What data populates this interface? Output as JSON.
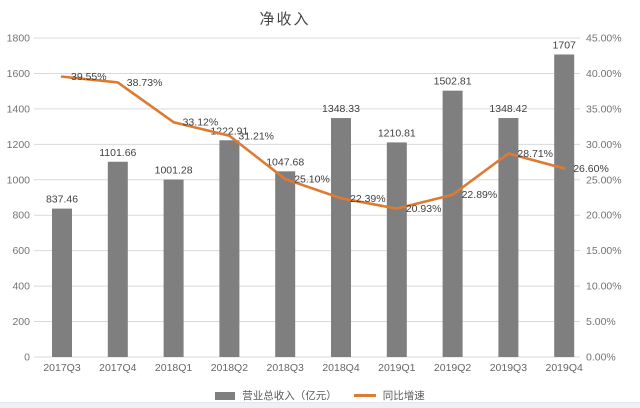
{
  "chart_data": {
    "type": "combo-bar-line",
    "title": "净收入",
    "categories": [
      "2017Q3",
      "2017Q4",
      "2018Q1",
      "2018Q2",
      "2018Q3",
      "2018Q4",
      "2019Q1",
      "2019Q2",
      "2019Q3",
      "2019Q4"
    ],
    "series": [
      {
        "name": "营业总收入（亿元）",
        "type": "bar",
        "axis": "left",
        "color": "#7f7f7f",
        "values": [
          837.46,
          1101.66,
          1001.28,
          1222.91,
          1047.68,
          1348.33,
          1210.81,
          1502.81,
          1348.42,
          1707
        ],
        "labels": [
          "837.46",
          "1101.66",
          "1001.28",
          "1222.91",
          "1047.68",
          "1348.33",
          "1210.81",
          "1502.81",
          "1348.42",
          "1707"
        ]
      },
      {
        "name": "同比增速",
        "type": "line",
        "axis": "right",
        "color": "#dd7b33",
        "values": [
          39.55,
          38.73,
          33.12,
          31.21,
          25.1,
          22.39,
          20.93,
          22.89,
          28.71,
          26.6
        ],
        "labels": [
          "39.55%",
          "38.73%",
          "33.12%",
          "31.21%",
          "25.10%",
          "22.39%",
          "20.93%",
          "22.89%",
          "28.71%",
          "26.60%"
        ]
      }
    ],
    "left_axis": {
      "min": 0,
      "max": 1800,
      "ticks": [
        "0",
        "200",
        "400",
        "600",
        "800",
        "1000",
        "1200",
        "1400",
        "1600",
        "1800"
      ]
    },
    "right_axis": {
      "min": 0,
      "max": 45,
      "ticks": [
        "0.00%",
        "5.00%",
        "10.00%",
        "15.00%",
        "20.00%",
        "25.00%",
        "30.00%",
        "35.00%",
        "40.00%",
        "45.00%"
      ]
    },
    "grid": true,
    "legend_position": "bottom",
    "gridline_color": "#d9d9d9"
  }
}
